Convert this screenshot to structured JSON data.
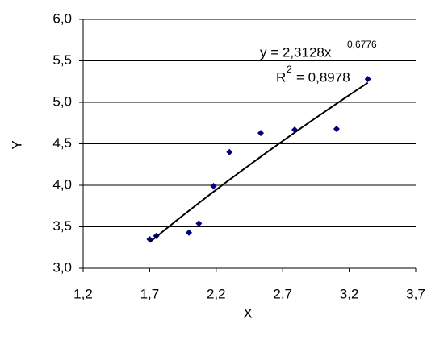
{
  "chart_data": {
    "type": "scatter",
    "x_label": "X",
    "y_label": "Y",
    "series": [
      {
        "color": "#000080",
        "x": [
          1.7,
          1.75,
          1.995,
          2.07,
          2.18,
          2.3,
          2.535,
          2.79,
          3.105,
          3.34
        ],
        "values": [
          3.35,
          3.39,
          3.43,
          3.54,
          3.99,
          4.4,
          4.63,
          4.67,
          4.68,
          5.28
        ]
      }
    ],
    "trendline": {
      "type": "power",
      "color": "#000000",
      "a": {
        "value": 2.3128,
        "label": "y = 2,3128x"
      },
      "b": {
        "value": 0.6776,
        "label": "0,6776"
      },
      "r2_symbol": "R",
      "r2_power": "2",
      "r2": {
        "value": 0.8978,
        "label": "= 0,8978"
      }
    },
    "xlim": [
      1.2,
      3.7
    ],
    "xticks": [
      {
        "value": 1.2,
        "label": "1,2"
      },
      {
        "value": 1.7,
        "label": "1,7"
      },
      {
        "value": 2.2,
        "label": "2,2"
      },
      {
        "value": 2.7,
        "label": "2,7"
      },
      {
        "value": 3.2,
        "label": "3,2"
      },
      {
        "value": 3.7,
        "label": "3,7"
      }
    ],
    "ylim": [
      3,
      6
    ],
    "yticks": [
      {
        "value": 3,
        "label": "3,0"
      },
      {
        "value": 3.5,
        "label": "3,5"
      },
      {
        "value": 4,
        "label": "4,0"
      },
      {
        "value": 4.5,
        "label": "4,5"
      },
      {
        "value": 5,
        "label": "5,0"
      },
      {
        "value": 5.5,
        "label": "5,5"
      },
      {
        "value": 6,
        "label": "6,0"
      }
    ],
    "grid": true
  }
}
